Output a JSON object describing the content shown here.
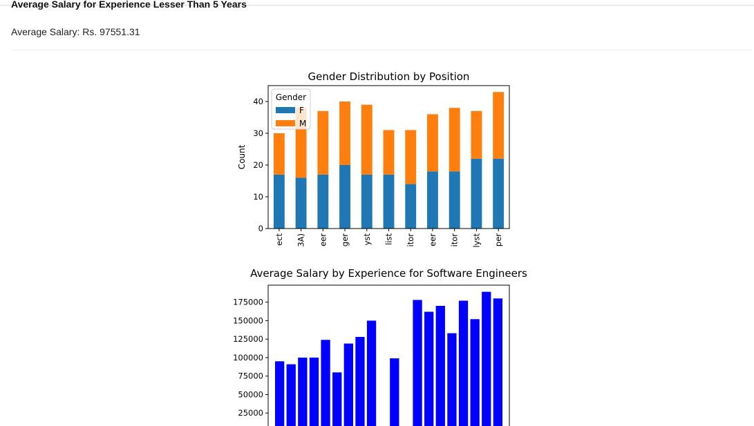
{
  "page": {
    "heading": "Average Salary for Experience Lesser Than 5 Years",
    "average_salary_text": "Average Salary: Rs. 97551.31"
  },
  "colors": {
    "female": "#1f77b4",
    "male": "#ff7f0e",
    "salary_bar": "#0000ff"
  },
  "chart_data": [
    {
      "type": "bar",
      "stacked": true,
      "title": "Gender Distribution by Position",
      "xlabel": "",
      "ylabel": "Count",
      "ylim": [
        0,
        45
      ],
      "yticks": [
        0,
        10,
        20,
        30,
        40
      ],
      "categories": [
        "ect",
        "3A)",
        "eer",
        "ger",
        "yst",
        "list",
        "itor",
        "eer",
        "itor",
        "lyst",
        "per"
      ],
      "legend": {
        "title": "Gender",
        "position": "upper-left"
      },
      "series": [
        {
          "name": "F",
          "color": "#1f77b4",
          "values": [
            17,
            16,
            17,
            20,
            17,
            17,
            14,
            18,
            18,
            22,
            22
          ]
        },
        {
          "name": "M",
          "color": "#ff7f0e",
          "values": [
            13,
            22,
            20,
            20,
            22,
            14,
            17,
            18,
            20,
            15,
            21
          ]
        }
      ]
    },
    {
      "type": "bar",
      "title": "Average Salary by Experience for Software Engineers",
      "xlabel": "",
      "ylabel": "",
      "ylim": [
        0,
        198000
      ],
      "yticks": [
        25000,
        50000,
        75000,
        100000,
        125000,
        150000,
        175000
      ],
      "x": [
        0,
        1,
        2,
        3,
        4,
        5,
        6,
        7,
        8,
        10,
        12,
        13,
        14,
        15,
        16,
        17,
        18,
        19
      ],
      "values": [
        95000,
        91000,
        100000,
        100000,
        124000,
        80000,
        119000,
        128000,
        150000,
        99000,
        178000,
        162000,
        170000,
        133000,
        177000,
        152000,
        189000,
        180000
      ],
      "color": "#0000ff"
    }
  ]
}
